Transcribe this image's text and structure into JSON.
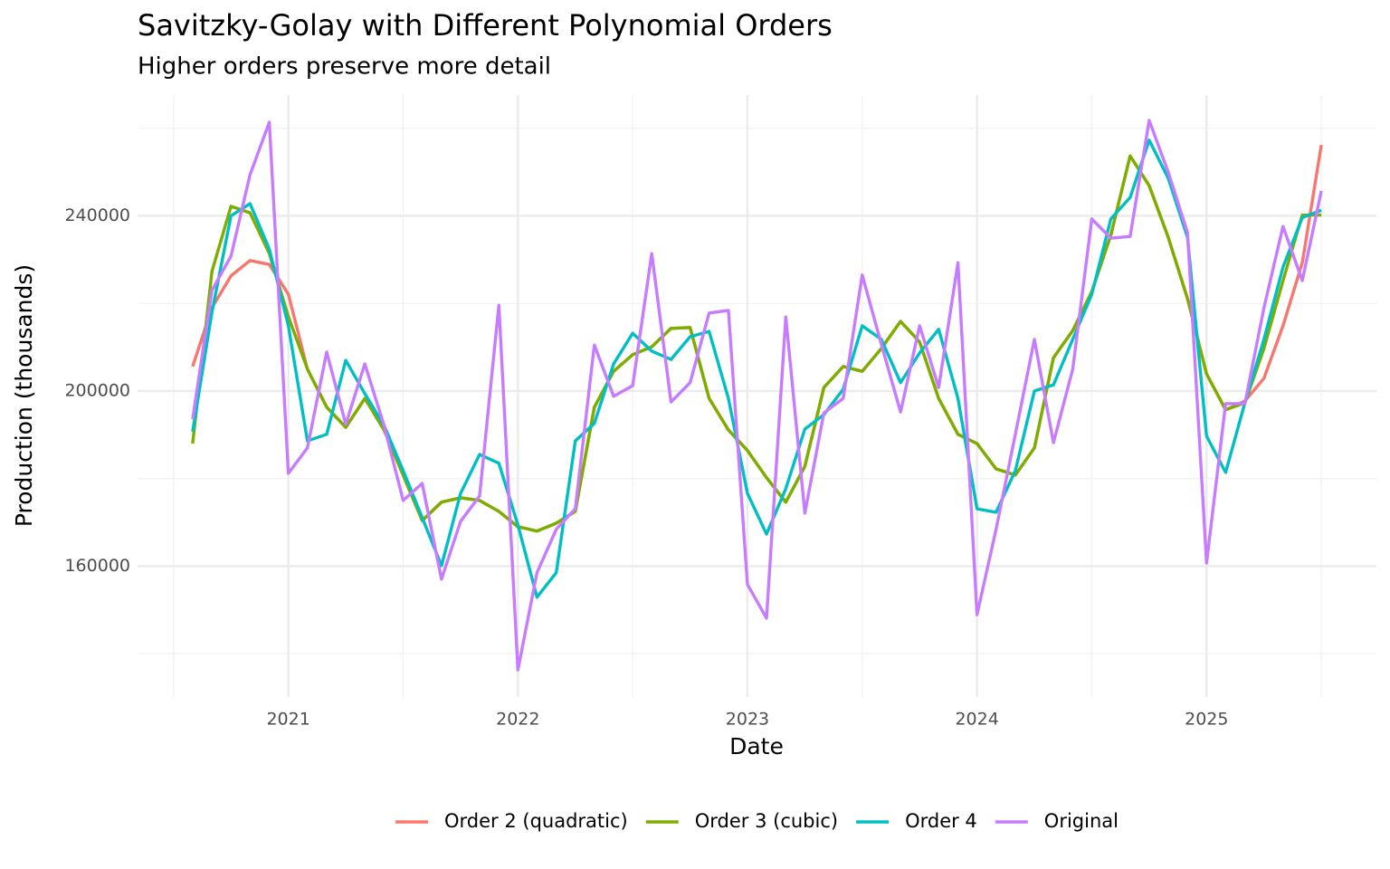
{
  "chart_data": {
    "type": "line",
    "title": "Savitzky-Golay with Different Polynomial Orders",
    "subtitle": "Higher orders preserve more detail",
    "x_label": "Date",
    "y_label": "Production (thousands)",
    "x": [
      2020.583,
      2020.667,
      2020.75,
      2020.833,
      2020.917,
      2021,
      2021.083,
      2021.167,
      2021.25,
      2021.333,
      2021.417,
      2021.5,
      2021.583,
      2021.667,
      2021.75,
      2021.833,
      2021.917,
      2022,
      2022.083,
      2022.167,
      2022.25,
      2022.333,
      2022.417,
      2022.5,
      2022.583,
      2022.667,
      2022.75,
      2022.833,
      2022.917,
      2023,
      2023.083,
      2023.167,
      2023.25,
      2023.333,
      2023.417,
      2023.5,
      2023.583,
      2023.667,
      2023.75,
      2023.833,
      2023.917,
      2024,
      2024.083,
      2024.167,
      2024.25,
      2024.333,
      2024.417,
      2024.5,
      2024.583,
      2024.667,
      2024.75,
      2024.833,
      2024.917,
      2025,
      2025.083,
      2025.167,
      2025.25,
      2025.333,
      2025.417,
      2025.5
    ],
    "series": [
      {
        "name": "Order 2 (quadratic)",
        "color": "#F8766D",
        "values": [
          205600,
          219000,
          226300,
          229800,
          228900,
          222100,
          205000,
          196300,
          191700,
          198300,
          191100,
          180800,
          170400,
          174600,
          175600,
          175000,
          172500,
          169000,
          168000,
          169800,
          172500,
          196300,
          204500,
          208300,
          210100,
          214300,
          214500,
          198300,
          191100,
          186400,
          180200,
          174600,
          182800,
          200800,
          205600,
          204500,
          209700,
          215900,
          211200,
          198300,
          190100,
          188000,
          182200,
          180800,
          187000,
          207600,
          213800,
          222700,
          235600,
          253700,
          246900,
          235100,
          221100,
          203900,
          195700,
          197700,
          202900,
          214900,
          229300,
          256200
        ]
      },
      {
        "name": "Order 3 (cubic)",
        "color": "#7CAE00",
        "values": [
          188000,
          227300,
          242200,
          240700,
          231400,
          217000,
          205000,
          196300,
          191700,
          198300,
          191100,
          180800,
          170400,
          174600,
          175600,
          175000,
          172500,
          169000,
          168000,
          169800,
          172500,
          196300,
          204500,
          208300,
          210100,
          214300,
          214500,
          198300,
          191100,
          186400,
          180200,
          174600,
          182800,
          200800,
          205600,
          204500,
          209700,
          215900,
          211200,
          198300,
          190100,
          188000,
          182200,
          180800,
          187000,
          207600,
          213800,
          222700,
          235600,
          253700,
          246900,
          235100,
          221100,
          203900,
          195700,
          197300,
          209700,
          225200,
          240200,
          240200
        ]
      },
      {
        "name": "Order 4",
        "color": "#00BFC4",
        "values": [
          190700,
          218000,
          240000,
          242800,
          232400,
          214900,
          188600,
          190100,
          207000,
          199400,
          192100,
          181800,
          171100,
          160100,
          176600,
          185500,
          183500,
          169400,
          152900,
          158500,
          188600,
          192600,
          206200,
          213200,
          209100,
          207200,
          212400,
          213600,
          198300,
          176600,
          167300,
          177700,
          191300,
          194600,
          200400,
          214900,
          211800,
          201900,
          208700,
          214100,
          198300,
          173100,
          172300,
          181800,
          200000,
          201400,
          211800,
          222100,
          239300,
          244200,
          257300,
          248600,
          235100,
          189700,
          181400,
          197300,
          211800,
          228300,
          239600,
          241300
        ]
      },
      {
        "name": "Original",
        "color": "#C77CFF",
        "values": [
          193600,
          223000,
          230800,
          249400,
          261400,
          181200,
          187000,
          208900,
          192400,
          206200,
          192100,
          175000,
          178900,
          157000,
          170200,
          176000,
          219600,
          136300,
          158500,
          168400,
          173100,
          210500,
          198800,
          201200,
          231400,
          197500,
          201900,
          217800,
          218400,
          155800,
          148100,
          216900,
          172100,
          195000,
          198300,
          226500,
          210700,
          195200,
          214900,
          200800,
          229300,
          148900,
          168400,
          190100,
          211800,
          188200,
          205000,
          239300,
          234900,
          235300,
          261800,
          250000,
          236200,
          160700,
          197100,
          197100,
          219000,
          237600,
          225200,
          245700
        ]
      }
    ],
    "xlim": [
      2020.343,
      2025.74
    ],
    "xticks": [
      2021,
      2022,
      2023,
      2024,
      2025
    ],
    "ylim": [
      130100,
      267600
    ],
    "yticks": [
      160000,
      200000,
      240000
    ],
    "grid": true,
    "legend": "bottom"
  }
}
